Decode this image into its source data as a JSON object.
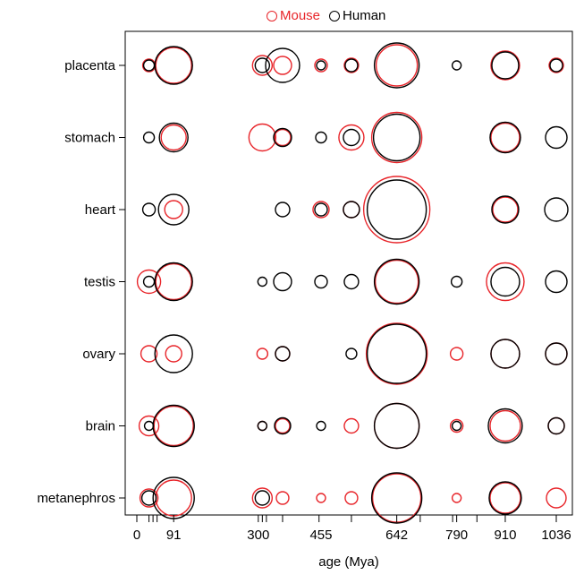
{
  "legend": {
    "items": [
      {
        "label": "Mouse",
        "color": "#e8252a"
      },
      {
        "label": "Human",
        "color": "#000000"
      }
    ]
  },
  "chart_data": {
    "type": "scatter",
    "subtype": "bubble",
    "xlabel": "age (Mya)",
    "ylabel": "",
    "x_ticks": [
      0,
      91,
      300,
      455,
      642,
      790,
      910,
      1036
    ],
    "x_minor_ticks": [
      0,
      30,
      40,
      50,
      91,
      300,
      310,
      320,
      360,
      450,
      530,
      642,
      700,
      780,
      790,
      840,
      910,
      1036
    ],
    "xlim": [
      -25,
      1070
    ],
    "categories": [
      "placenta",
      "stomach",
      "heart",
      "testis",
      "ovary",
      "brain",
      "metanephros"
    ],
    "x_positions": [
      30,
      91,
      310,
      360,
      455,
      530,
      642,
      790,
      910,
      1036
    ],
    "series": [
      {
        "name": "Mouse",
        "color": "#e8252a",
        "radii": [
          [
            7,
            20,
            11,
            10,
            7,
            8,
            23,
            0,
            16,
            8
          ],
          [
            0,
            14,
            15,
            9,
            0,
            14,
            28,
            0,
            16,
            0
          ],
          [
            0,
            10,
            0,
            0,
            9,
            9,
            37,
            0,
            14,
            0
          ],
          [
            13,
            20,
            0,
            0,
            0,
            0,
            24,
            0,
            21,
            0
          ],
          [
            9,
            9,
            6,
            8,
            0,
            0,
            34,
            7,
            16,
            12
          ],
          [
            11,
            22,
            5,
            8,
            0,
            8,
            25,
            7,
            17,
            9
          ],
          [
            10,
            20,
            11,
            7,
            5,
            7,
            27,
            5,
            17,
            11
          ]
        ]
      },
      {
        "name": "Human",
        "color": "#000000",
        "radii": [
          [
            6,
            21,
            8,
            19,
            5,
            7,
            25,
            5,
            15,
            7
          ],
          [
            6,
            16,
            0,
            10,
            6,
            9,
            26,
            0,
            17,
            12
          ],
          [
            7,
            17,
            0,
            8,
            7,
            9,
            33,
            0,
            15,
            13
          ],
          [
            6,
            21,
            5,
            10,
            7,
            8,
            25,
            6,
            16,
            12
          ],
          [
            0,
            21,
            0,
            8,
            0,
            6,
            33,
            0,
            16,
            12
          ],
          [
            5,
            23,
            5,
            9,
            5,
            0,
            25,
            5,
            19,
            9
          ],
          [
            8,
            23,
            8,
            0,
            0,
            0,
            28,
            0,
            18,
            0
          ]
        ]
      }
    ]
  }
}
